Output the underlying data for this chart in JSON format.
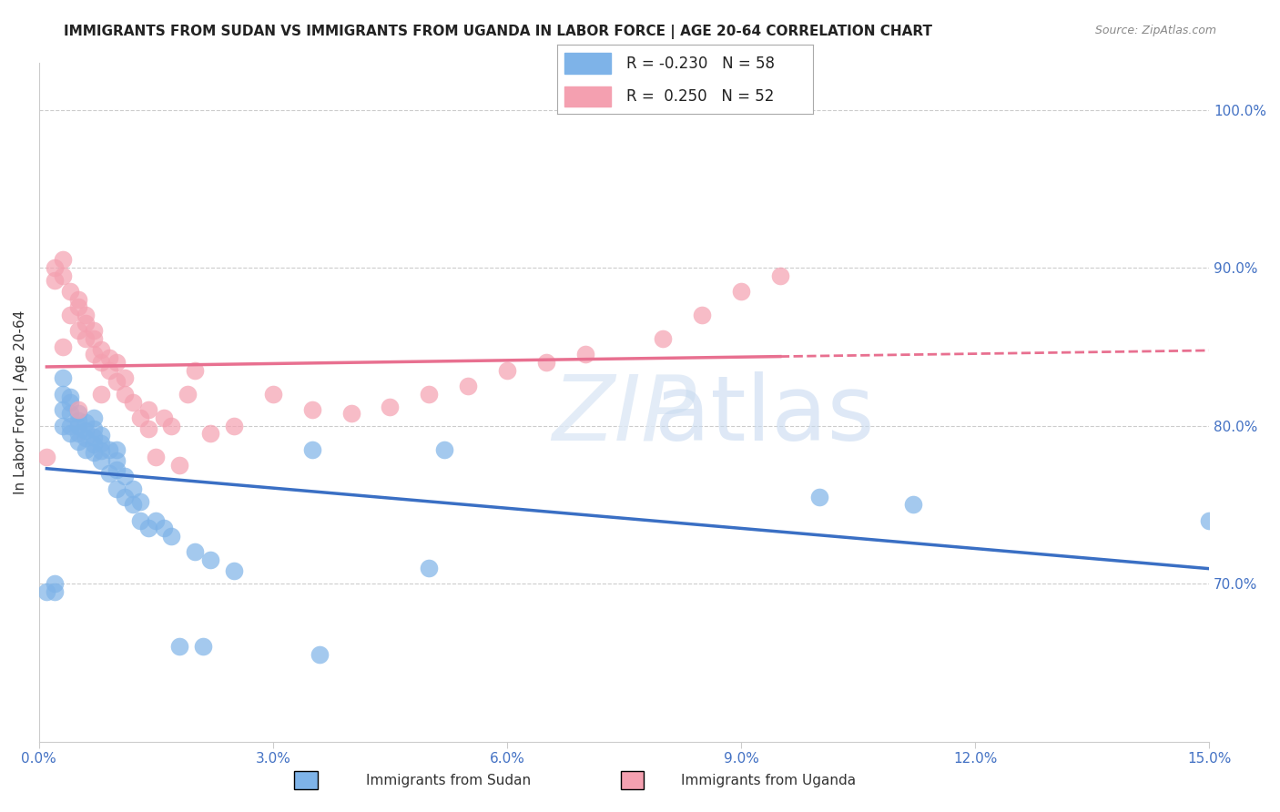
{
  "title": "IMMIGRANTS FROM SUDAN VS IMMIGRANTS FROM UGANDA IN LABOR FORCE | AGE 20-64 CORRELATION CHART",
  "source": "Source: ZipAtlas.com",
  "xlabel": "",
  "ylabel": "In Labor Force | Age 20-64",
  "xlim": [
    0.0,
    0.15
  ],
  "ylim": [
    0.6,
    1.03
  ],
  "yticks": [
    0.7,
    0.8,
    0.9,
    1.0
  ],
  "ytick_labels": [
    "70.0%",
    "80.0%",
    "90.0%",
    "100.0%"
  ],
  "xticks": [
    0.0,
    0.03,
    0.06,
    0.09,
    0.12,
    0.15
  ],
  "xtick_labels": [
    "0.0%",
    "3.0%",
    "6.0%",
    "9.0%",
    "12.0%",
    "15.0%"
  ],
  "legend_r_sudan": "-0.230",
  "legend_n_sudan": "58",
  "legend_r_uganda": "0.250",
  "legend_n_uganda": "52",
  "sudan_color": "#7eb3e8",
  "uganda_color": "#f4a0b0",
  "sudan_line_color": "#3a6fc4",
  "uganda_line_color": "#e87090",
  "watermark": "ZIPatlas",
  "sudan_x": [
    0.001,
    0.002,
    0.002,
    0.003,
    0.003,
    0.003,
    0.003,
    0.004,
    0.004,
    0.004,
    0.004,
    0.004,
    0.005,
    0.005,
    0.005,
    0.005,
    0.005,
    0.006,
    0.006,
    0.006,
    0.006,
    0.007,
    0.007,
    0.007,
    0.007,
    0.007,
    0.008,
    0.008,
    0.008,
    0.008,
    0.009,
    0.009,
    0.01,
    0.01,
    0.01,
    0.01,
    0.011,
    0.011,
    0.012,
    0.012,
    0.013,
    0.013,
    0.014,
    0.015,
    0.016,
    0.017,
    0.018,
    0.02,
    0.021,
    0.022,
    0.025,
    0.035,
    0.036,
    0.05,
    0.052,
    0.1,
    0.112,
    0.15
  ],
  "sudan_y": [
    0.695,
    0.7,
    0.695,
    0.8,
    0.81,
    0.82,
    0.83,
    0.795,
    0.8,
    0.808,
    0.815,
    0.818,
    0.79,
    0.795,
    0.8,
    0.803,
    0.808,
    0.785,
    0.792,
    0.797,
    0.802,
    0.783,
    0.788,
    0.793,
    0.798,
    0.805,
    0.778,
    0.784,
    0.789,
    0.794,
    0.77,
    0.785,
    0.76,
    0.772,
    0.778,
    0.785,
    0.755,
    0.768,
    0.75,
    0.76,
    0.74,
    0.752,
    0.735,
    0.74,
    0.735,
    0.73,
    0.66,
    0.72,
    0.66,
    0.715,
    0.708,
    0.785,
    0.655,
    0.71,
    0.785,
    0.755,
    0.75,
    0.74
  ],
  "uganda_x": [
    0.001,
    0.002,
    0.002,
    0.003,
    0.003,
    0.003,
    0.004,
    0.004,
    0.005,
    0.005,
    0.005,
    0.005,
    0.006,
    0.006,
    0.006,
    0.007,
    0.007,
    0.007,
    0.008,
    0.008,
    0.008,
    0.009,
    0.009,
    0.01,
    0.01,
    0.011,
    0.011,
    0.012,
    0.013,
    0.014,
    0.014,
    0.015,
    0.016,
    0.017,
    0.018,
    0.019,
    0.02,
    0.022,
    0.025,
    0.03,
    0.035,
    0.04,
    0.045,
    0.05,
    0.055,
    0.06,
    0.065,
    0.07,
    0.08,
    0.085,
    0.09,
    0.095
  ],
  "uganda_y": [
    0.78,
    0.892,
    0.9,
    0.85,
    0.895,
    0.905,
    0.87,
    0.885,
    0.86,
    0.875,
    0.88,
    0.81,
    0.855,
    0.865,
    0.87,
    0.845,
    0.855,
    0.86,
    0.84,
    0.848,
    0.82,
    0.835,
    0.843,
    0.828,
    0.84,
    0.82,
    0.83,
    0.815,
    0.805,
    0.798,
    0.81,
    0.78,
    0.805,
    0.8,
    0.775,
    0.82,
    0.835,
    0.795,
    0.8,
    0.82,
    0.81,
    0.808,
    0.812,
    0.82,
    0.825,
    0.835,
    0.84,
    0.845,
    0.855,
    0.87,
    0.885,
    0.895
  ],
  "title_fontsize": 11,
  "axis_label_fontsize": 11,
  "tick_fontsize": 11,
  "legend_fontsize": 12
}
